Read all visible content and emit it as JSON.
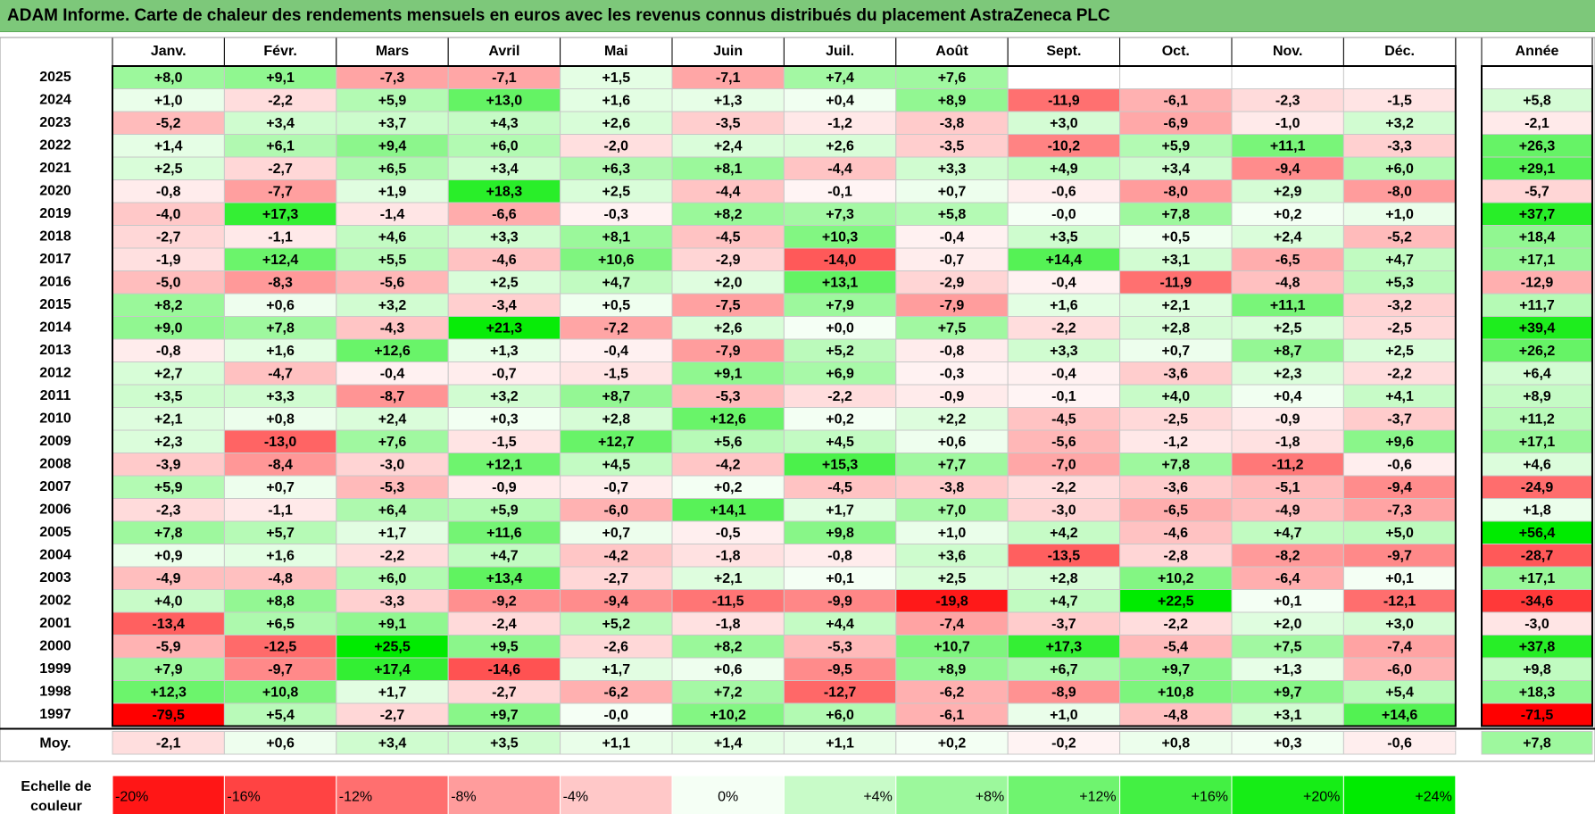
{
  "title": "ADAM Informe. Carte de chaleur des rendements mensuels en euros avec les revenus connus distribués du placement AstraZeneca PLC",
  "colors": {
    "header_green": "#7dc87a",
    "neg_max": "#ff0000",
    "pos_max": "#00e600",
    "neutral": "#ffffff"
  },
  "chart_data": {
    "type": "heatmap",
    "title": "ADAM Informe. Carte de chaleur des rendements mensuels en euros avec les revenus connus distribués du placement AstraZeneca PLC",
    "months": [
      "Janv.",
      "Févr.",
      "Mars",
      "Avril",
      "Mai",
      "Juin",
      "Juil.",
      "Août",
      "Sept.",
      "Oct.",
      "Nov.",
      "Déc."
    ],
    "year_header": "Année",
    "avg_label": "Moy.",
    "rows": [
      {
        "year": "2025",
        "months": [
          "+8,0",
          "+9,1",
          "-7,3",
          "-7,1",
          "+1,5",
          "-7,1",
          "+7,4",
          "+7,6",
          "",
          "",
          "",
          ""
        ],
        "annual": ""
      },
      {
        "year": "2024",
        "months": [
          "+1,0",
          "-2,2",
          "+5,9",
          "+13,0",
          "+1,6",
          "+1,3",
          "+0,4",
          "+8,9",
          "-11,9",
          "-6,1",
          "-2,3",
          "-1,5"
        ],
        "annual": "+5,8"
      },
      {
        "year": "2023",
        "months": [
          "-5,2",
          "+3,4",
          "+3,7",
          "+4,3",
          "+2,6",
          "-3,5",
          "-1,2",
          "-3,8",
          "+3,0",
          "-6,9",
          "-1,0",
          "+3,2"
        ],
        "annual": "-2,1"
      },
      {
        "year": "2022",
        "months": [
          "+1,4",
          "+6,1",
          "+9,4",
          "+6,0",
          "-2,0",
          "+2,4",
          "+2,6",
          "-3,5",
          "-10,2",
          "+5,9",
          "+11,1",
          "-3,3"
        ],
        "annual": "+26,3"
      },
      {
        "year": "2021",
        "months": [
          "+2,5",
          "-2,7",
          "+6,5",
          "+3,4",
          "+6,3",
          "+8,1",
          "-4,4",
          "+3,3",
          "+4,9",
          "+3,4",
          "-9,4",
          "+6,0"
        ],
        "annual": "+29,1"
      },
      {
        "year": "2020",
        "months": [
          "-0,8",
          "-7,7",
          "+1,9",
          "+18,3",
          "+2,5",
          "-4,4",
          "-0,1",
          "+0,7",
          "-0,6",
          "-8,0",
          "+2,9",
          "-8,0"
        ],
        "annual": "-5,7"
      },
      {
        "year": "2019",
        "months": [
          "-4,0",
          "+17,3",
          "-1,4",
          "-6,6",
          "-0,3",
          "+8,2",
          "+7,3",
          "+5,8",
          "-0,0",
          "+7,8",
          "+0,2",
          "+1,0"
        ],
        "annual": "+37,7"
      },
      {
        "year": "2018",
        "months": [
          "-2,7",
          "-1,1",
          "+4,6",
          "+3,3",
          "+8,1",
          "-4,5",
          "+10,3",
          "-0,4",
          "+3,5",
          "+0,5",
          "+2,4",
          "-5,2"
        ],
        "annual": "+18,4"
      },
      {
        "year": "2017",
        "months": [
          "-1,9",
          "+12,4",
          "+5,5",
          "-4,6",
          "+10,6",
          "-2,9",
          "-14,0",
          "-0,7",
          "+14,4",
          "+3,1",
          "-6,5",
          "+4,7"
        ],
        "annual": "+17,1"
      },
      {
        "year": "2016",
        "months": [
          "-5,0",
          "-8,3",
          "-5,6",
          "+2,5",
          "+4,7",
          "+2,0",
          "+13,1",
          "-2,9",
          "-0,4",
          "-11,9",
          "-4,8",
          "+5,3"
        ],
        "annual": "-12,9"
      },
      {
        "year": "2015",
        "months": [
          "+8,2",
          "+0,6",
          "+3,2",
          "-3,4",
          "+0,5",
          "-7,5",
          "+7,9",
          "-7,9",
          "+1,6",
          "+2,1",
          "+11,1",
          "-3,2"
        ],
        "annual": "+11,7"
      },
      {
        "year": "2014",
        "months": [
          "+9,0",
          "+7,8",
          "-4,3",
          "+21,3",
          "-7,2",
          "+2,6",
          "+0,0",
          "+7,5",
          "-2,2",
          "+2,8",
          "+2,5",
          "-2,5"
        ],
        "annual": "+39,4"
      },
      {
        "year": "2013",
        "months": [
          "-0,8",
          "+1,6",
          "+12,6",
          "+1,3",
          "-0,4",
          "-7,9",
          "+5,2",
          "-0,8",
          "+3,3",
          "+0,7",
          "+8,7",
          "+2,5"
        ],
        "annual": "+26,2"
      },
      {
        "year": "2012",
        "months": [
          "+2,7",
          "-4,7",
          "-0,4",
          "-0,7",
          "-1,5",
          "+9,1",
          "+6,9",
          "-0,3",
          "-0,4",
          "-3,6",
          "+2,3",
          "-2,2"
        ],
        "annual": "+6,4"
      },
      {
        "year": "2011",
        "months": [
          "+3,5",
          "+3,3",
          "-8,7",
          "+3,2",
          "+8,7",
          "-5,3",
          "-2,2",
          "-0,9",
          "-0,1",
          "+4,0",
          "+0,4",
          "+4,1"
        ],
        "annual": "+8,9"
      },
      {
        "year": "2010",
        "months": [
          "+2,1",
          "+0,8",
          "+2,4",
          "+0,3",
          "+2,8",
          "+12,6",
          "+0,2",
          "+2,2",
          "-4,5",
          "-2,5",
          "-0,9",
          "-3,7"
        ],
        "annual": "+11,2"
      },
      {
        "year": "2009",
        "months": [
          "+2,3",
          "-13,0",
          "+7,6",
          "-1,5",
          "+12,7",
          "+5,6",
          "+4,5",
          "+0,6",
          "-5,6",
          "-1,2",
          "-1,8",
          "+9,6"
        ],
        "annual": "+17,1"
      },
      {
        "year": "2008",
        "months": [
          "-3,9",
          "-8,4",
          "-3,0",
          "+12,1",
          "+4,5",
          "-4,2",
          "+15,3",
          "+7,7",
          "-7,0",
          "+7,8",
          "-11,2",
          "-0,6"
        ],
        "annual": "+4,6"
      },
      {
        "year": "2007",
        "months": [
          "+5,9",
          "+0,7",
          "-5,3",
          "-0,9",
          "-0,7",
          "+0,2",
          "-4,5",
          "-3,8",
          "-2,2",
          "-3,6",
          "-5,1",
          "-9,4"
        ],
        "annual": "-24,9"
      },
      {
        "year": "2006",
        "months": [
          "-2,3",
          "-1,1",
          "+6,4",
          "+5,9",
          "-6,0",
          "+14,1",
          "+1,7",
          "+7,0",
          "-3,0",
          "-6,5",
          "-4,9",
          "-7,3"
        ],
        "annual": "+1,8"
      },
      {
        "year": "2005",
        "months": [
          "+7,8",
          "+5,7",
          "+1,7",
          "+11,6",
          "+0,7",
          "-0,5",
          "+9,8",
          "+1,0",
          "+4,2",
          "-4,6",
          "+4,7",
          "+5,0"
        ],
        "annual": "+56,4"
      },
      {
        "year": "2004",
        "months": [
          "+0,9",
          "+1,6",
          "-2,2",
          "+4,7",
          "-4,2",
          "-1,8",
          "-0,8",
          "+3,6",
          "-13,5",
          "-2,8",
          "-8,2",
          "-9,7"
        ],
        "annual": "-28,7"
      },
      {
        "year": "2003",
        "months": [
          "-4,9",
          "-4,8",
          "+6,0",
          "+13,4",
          "-2,7",
          "+2,1",
          "+0,1",
          "+2,5",
          "+2,8",
          "+10,2",
          "-6,4",
          "+0,1"
        ],
        "annual": "+17,1"
      },
      {
        "year": "2002",
        "months": [
          "+4,0",
          "+8,8",
          "-3,3",
          "-9,2",
          "-9,4",
          "-11,5",
          "-9,9",
          "-19,8",
          "+4,7",
          "+22,5",
          "+0,1",
          "-12,1"
        ],
        "annual": "-34,6"
      },
      {
        "year": "2001",
        "months": [
          "-13,4",
          "+6,5",
          "+9,1",
          "-2,4",
          "+5,2",
          "-1,8",
          "+4,4",
          "-7,4",
          "-3,7",
          "-2,2",
          "+2,0",
          "+3,0"
        ],
        "annual": "-3,0"
      },
      {
        "year": "2000",
        "months": [
          "-5,9",
          "-12,5",
          "+25,5",
          "+9,5",
          "-2,6",
          "+8,2",
          "-5,3",
          "+10,7",
          "+17,3",
          "-5,4",
          "+7,5",
          "-7,4"
        ],
        "annual": "+37,8"
      },
      {
        "year": "1999",
        "months": [
          "+7,9",
          "-9,7",
          "+17,4",
          "-14,6",
          "+1,7",
          "+0,6",
          "-9,5",
          "+8,9",
          "+6,7",
          "+9,7",
          "+1,3",
          "-6,0"
        ],
        "annual": "+9,8"
      },
      {
        "year": "1998",
        "months": [
          "+12,3",
          "+10,8",
          "+1,7",
          "-2,7",
          "-6,2",
          "+7,2",
          "-12,7",
          "-6,2",
          "-8,9",
          "+10,8",
          "+9,7",
          "+5,4"
        ],
        "annual": "+18,3"
      },
      {
        "year": "1997",
        "months": [
          "-79,5",
          "+5,4",
          "-2,7",
          "+9,7",
          "-0,0",
          "+10,2",
          "+6,0",
          "-6,1",
          "+1,0",
          "-4,8",
          "+3,1",
          "+14,6"
        ],
        "annual": "-71,5"
      }
    ],
    "average": {
      "months": [
        "-2,1",
        "+0,6",
        "+3,4",
        "+3,5",
        "+1,1",
        "+1,4",
        "+1,1",
        "+0,2",
        "-0,2",
        "+0,8",
        "+0,3",
        "-0,6"
      ],
      "annual": "+7,8"
    },
    "legend": {
      "label_line1": "Echelle de",
      "label_line2": "couleur",
      "steps": [
        "-20%",
        "-16%",
        "-12%",
        "-8%",
        "-4%",
        "0%",
        "+4%",
        "+8%",
        "+12%",
        "+16%",
        "+20%",
        "+24%"
      ]
    }
  }
}
